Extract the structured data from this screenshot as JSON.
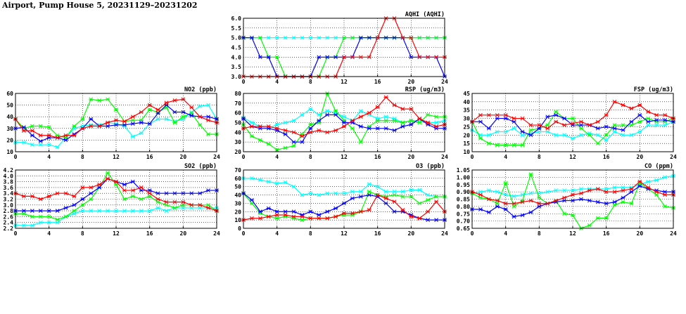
{
  "page_title": "Airport, Pump House 5, 20231129–20231202",
  "colors": {
    "red": "#ff0000",
    "green": "#00ff00",
    "blue": "#0000ff",
    "cyan": "#00ffff"
  },
  "chart_data": [
    {
      "id": "aqhi",
      "type": "line",
      "title": "AQHI (AQHI)",
      "xlim": [
        0,
        24
      ],
      "xticks": [
        0,
        4,
        8,
        12,
        16,
        20,
        24
      ],
      "ylim": [
        3.0,
        6.0
      ],
      "yticks": [
        "3.0",
        "3.5",
        "4.0",
        "4.5",
        "5.0",
        "5.5",
        "6.0"
      ],
      "grid": true,
      "series": [
        {
          "color": "#00ffff",
          "values": [
            5,
            5,
            5,
            5,
            5,
            5,
            5,
            5,
            5,
            5,
            5,
            5,
            5,
            5,
            5,
            5,
            5,
            5,
            5,
            5,
            5,
            5,
            5,
            5,
            5
          ]
        },
        {
          "color": "#00ff00",
          "values": [
            5,
            5,
            5,
            4,
            4,
            3,
            3,
            3,
            3,
            3,
            4,
            4,
            5,
            5,
            5,
            5,
            5,
            5,
            5,
            5,
            5,
            5,
            5,
            5,
            5
          ]
        },
        {
          "color": "#0000ff",
          "values": [
            5,
            5,
            4,
            4,
            3,
            3,
            3,
            3,
            3,
            4,
            4,
            4,
            4,
            4,
            5,
            5,
            5,
            5,
            5,
            5,
            4,
            4,
            4,
            4,
            3
          ]
        },
        {
          "color": "#ff0000",
          "values": [
            3,
            3,
            3,
            3,
            3,
            3,
            3,
            3,
            3,
            3,
            3,
            3,
            4,
            4,
            4,
            4,
            5,
            6,
            6,
            5,
            5,
            4,
            4,
            4,
            4
          ]
        }
      ]
    },
    {
      "id": "no2",
      "type": "line",
      "title": "NO2 (ppb)",
      "xlim": [
        0,
        24
      ],
      "xticks": [
        0,
        4,
        8,
        12,
        16,
        20,
        24
      ],
      "ylim": [
        10,
        60
      ],
      "yticks": [
        "10",
        "20",
        "30",
        "40",
        "50",
        "60"
      ],
      "grid": true,
      "series": [
        {
          "color": "#00ffff",
          "values": [
            18,
            18,
            16,
            16,
            16,
            14,
            22,
            30,
            32,
            33,
            33,
            35,
            34,
            32,
            23,
            26,
            34,
            38,
            38,
            36,
            38,
            44,
            49,
            50,
            38
          ]
        },
        {
          "color": "#00ff00",
          "values": [
            38,
            30,
            32,
            32,
            31,
            24,
            22,
            32,
            38,
            55,
            54,
            55,
            46,
            36,
            37,
            37,
            46,
            44,
            48,
            35,
            40,
            43,
            33,
            25,
            25
          ]
        },
        {
          "color": "#0000ff",
          "values": [
            30,
            31,
            24,
            19,
            22,
            22,
            20,
            25,
            30,
            38,
            32,
            32,
            33,
            33,
            34,
            35,
            34,
            43,
            50,
            44,
            44,
            41,
            40,
            40,
            38
          ]
        },
        {
          "color": "#ff0000",
          "values": [
            38,
            28,
            28,
            24,
            24,
            22,
            24,
            24,
            30,
            32,
            32,
            35,
            37,
            36,
            40,
            44,
            50,
            46,
            52,
            54,
            55,
            48,
            40,
            37,
            35
          ]
        }
      ]
    },
    {
      "id": "rsp",
      "type": "line",
      "title": "RSP (ug/m3)",
      "xlim": [
        0,
        24
      ],
      "xticks": [
        0,
        4,
        8,
        12,
        16,
        20,
        24
      ],
      "ylim": [
        20,
        80
      ],
      "yticks": [
        "20",
        "30",
        "40",
        "50",
        "60",
        "70",
        "80"
      ],
      "grid": true,
      "series": [
        {
          "color": "#00ffff",
          "values": [
            55,
            50,
            46,
            44,
            48,
            50,
            52,
            58,
            64,
            58,
            62,
            60,
            56,
            52,
            62,
            58,
            54,
            56,
            54,
            50,
            52,
            52,
            50,
            50,
            52
          ]
        },
        {
          "color": "#00ff00",
          "values": [
            48,
            36,
            32,
            28,
            22,
            24,
            26,
            38,
            48,
            50,
            86,
            62,
            52,
            44,
            30,
            46,
            52,
            52,
            52,
            50,
            52,
            50,
            58,
            56,
            56
          ]
        },
        {
          "color": "#0000ff",
          "values": [
            54,
            46,
            44,
            44,
            42,
            38,
            30,
            30,
            44,
            52,
            58,
            58,
            50,
            50,
            46,
            44,
            44,
            44,
            42,
            46,
            48,
            54,
            48,
            44,
            44
          ]
        },
        {
          "color": "#ff0000",
          "values": [
            44,
            46,
            46,
            46,
            44,
            42,
            40,
            36,
            40,
            42,
            40,
            42,
            46,
            52,
            56,
            60,
            66,
            76,
            68,
            64,
            64,
            54,
            50,
            46,
            48
          ]
        }
      ]
    },
    {
      "id": "fsp",
      "type": "line",
      "title": "FSP (ug/m3)",
      "xlim": [
        0,
        24
      ],
      "xticks": [
        0,
        4,
        8,
        12,
        16,
        20,
        24
      ],
      "ylim": [
        10,
        45
      ],
      "yticks": [
        "10",
        "15",
        "20",
        "25",
        "30",
        "35",
        "40",
        "45"
      ],
      "grid": true,
      "series": [
        {
          "color": "#00ffff",
          "values": [
            23,
            20,
            20,
            22,
            22,
            24,
            20,
            21,
            22,
            22,
            20,
            20,
            18,
            20,
            21,
            20,
            17,
            22,
            20,
            20,
            22,
            26,
            26,
            26,
            28
          ]
        },
        {
          "color": "#00ff00",
          "values": [
            28,
            18,
            15,
            14,
            14,
            14,
            14,
            23,
            24,
            26,
            34,
            30,
            30,
            24,
            20,
            15,
            20,
            26,
            26,
            26,
            28,
            30,
            28,
            28,
            30
          ]
        },
        {
          "color": "#0000ff",
          "values": [
            28,
            28,
            24,
            30,
            30,
            28,
            22,
            20,
            24,
            31,
            32,
            30,
            26,
            26,
            26,
            24,
            25,
            24,
            23,
            28,
            32,
            28,
            29,
            29,
            28
          ]
        },
        {
          "color": "#ff0000",
          "values": [
            28,
            32,
            32,
            32,
            32,
            30,
            30,
            26,
            26,
            24,
            28,
            26,
            27,
            28,
            26,
            28,
            32,
            40,
            38,
            36,
            38,
            34,
            32,
            32,
            30
          ]
        }
      ]
    },
    {
      "id": "so2",
      "type": "line",
      "title": "SO2 (ppb)",
      "xlim": [
        0,
        24
      ],
      "xticks": [
        0,
        4,
        8,
        12,
        16,
        20,
        24
      ],
      "ylim": [
        2.2,
        4.2
      ],
      "yticks": [
        "2.2",
        "2.4",
        "2.6",
        "2.8",
        "3.0",
        "3.2",
        "3.4",
        "3.6",
        "3.8",
        "4.0",
        "4.2"
      ],
      "grid": true,
      "series": [
        {
          "color": "#00ffff",
          "values": [
            2.3,
            2.3,
            2.3,
            2.4,
            2.4,
            2.4,
            2.6,
            2.7,
            2.8,
            2.8,
            2.8,
            2.8,
            2.8,
            2.8,
            2.8,
            2.8,
            2.8,
            2.9,
            2.8,
            2.9,
            2.9,
            2.9,
            2.9,
            2.9,
            2.9
          ]
        },
        {
          "color": "#00ff00",
          "values": [
            2.7,
            2.7,
            2.6,
            2.6,
            2.6,
            2.5,
            2.6,
            2.8,
            3.0,
            3.2,
            3.6,
            4.1,
            3.7,
            3.2,
            3.3,
            3.2,
            3.3,
            3.1,
            3.0,
            2.9,
            3.0,
            3.0,
            3.0,
            3.0,
            2.8
          ]
        },
        {
          "color": "#0000ff",
          "values": [
            2.8,
            2.8,
            2.8,
            2.8,
            2.8,
            2.8,
            2.9,
            3.0,
            3.2,
            3.4,
            3.6,
            3.9,
            3.8,
            3.7,
            3.8,
            3.5,
            3.5,
            3.4,
            3.4,
            3.4,
            3.4,
            3.4,
            3.4,
            3.5,
            3.5
          ]
        },
        {
          "color": "#ff0000",
          "values": [
            3.4,
            3.3,
            3.3,
            3.2,
            3.3,
            3.4,
            3.4,
            3.3,
            3.6,
            3.6,
            3.7,
            3.9,
            3.8,
            3.5,
            3.5,
            3.6,
            3.4,
            3.2,
            3.1,
            3.1,
            3.1,
            3.0,
            3.0,
            2.9,
            2.8
          ]
        }
      ]
    },
    {
      "id": "o3",
      "type": "line",
      "title": "O3 (ppb)",
      "xlim": [
        0,
        24
      ],
      "xticks": [
        0,
        4,
        8,
        12,
        16,
        20,
        24
      ],
      "ylim": [
        0,
        70
      ],
      "yticks": [
        "0",
        "10",
        "20",
        "30",
        "40",
        "50",
        "60",
        "70"
      ],
      "grid": true,
      "series": [
        {
          "color": "#00ffff",
          "values": [
            60,
            60,
            58,
            56,
            54,
            55,
            50,
            40,
            42,
            40,
            42,
            42,
            42,
            44,
            44,
            53,
            50,
            44,
            44,
            44,
            46,
            46,
            40,
            38,
            38
          ]
        },
        {
          "color": "#00ff00",
          "values": [
            42,
            30,
            18,
            14,
            12,
            14,
            12,
            10,
            12,
            12,
            12,
            14,
            16,
            16,
            20,
            44,
            40,
            38,
            40,
            38,
            38,
            30,
            34,
            38,
            38
          ]
        },
        {
          "color": "#0000ff",
          "values": [
            42,
            34,
            20,
            24,
            20,
            20,
            20,
            16,
            20,
            16,
            20,
            24,
            30,
            36,
            38,
            40,
            38,
            30,
            20,
            20,
            16,
            12,
            10,
            10,
            10
          ]
        },
        {
          "color": "#ff0000",
          "values": [
            10,
            12,
            12,
            14,
            16,
            16,
            14,
            14,
            12,
            12,
            12,
            14,
            18,
            18,
            20,
            22,
            40,
            36,
            32,
            22,
            14,
            12,
            20,
            32,
            20
          ]
        }
      ]
    },
    {
      "id": "co",
      "type": "line",
      "title": "CO (ppm)",
      "xlim": [
        0,
        24
      ],
      "xticks": [
        0,
        4,
        8,
        12,
        16,
        20,
        24
      ],
      "ylim": [
        0.65,
        1.05
      ],
      "yticks": [
        "0.65",
        "0.70",
        "0.75",
        "0.80",
        "0.85",
        "0.90",
        "0.95",
        "1.00",
        "1.05"
      ],
      "grid": true,
      "series": [
        {
          "color": "#00ffff",
          "values": [
            0.89,
            0.9,
            0.91,
            0.9,
            0.88,
            0.87,
            0.88,
            0.89,
            0.89,
            0.9,
            0.91,
            0.91,
            0.91,
            0.92,
            0.92,
            0.92,
            0.92,
            0.93,
            0.93,
            0.93,
            0.95,
            0.97,
            0.98,
            1.0,
            1.01
          ]
        },
        {
          "color": "#00ff00",
          "values": [
            0.89,
            0.86,
            0.85,
            0.82,
            0.96,
            0.8,
            0.84,
            1.02,
            0.86,
            0.82,
            0.84,
            0.75,
            0.74,
            0.65,
            0.67,
            0.72,
            0.72,
            0.81,
            0.83,
            0.82,
            0.96,
            0.92,
            0.88,
            0.8,
            0.79
          ]
        },
        {
          "color": "#0000ff",
          "values": [
            0.78,
            0.78,
            0.76,
            0.8,
            0.78,
            0.73,
            0.74,
            0.76,
            0.8,
            0.82,
            0.83,
            0.84,
            0.84,
            0.85,
            0.84,
            0.83,
            0.82,
            0.83,
            0.86,
            0.9,
            0.94,
            0.92,
            0.91,
            0.9,
            0.9
          ]
        },
        {
          "color": "#ff0000",
          "values": [
            0.9,
            0.88,
            0.85,
            0.84,
            0.82,
            0.82,
            0.83,
            0.84,
            0.82,
            0.82,
            0.84,
            0.86,
            0.88,
            0.89,
            0.91,
            0.92,
            0.9,
            0.9,
            0.91,
            0.92,
            0.97,
            0.93,
            0.9,
            0.88,
            0.88
          ]
        }
      ]
    }
  ]
}
